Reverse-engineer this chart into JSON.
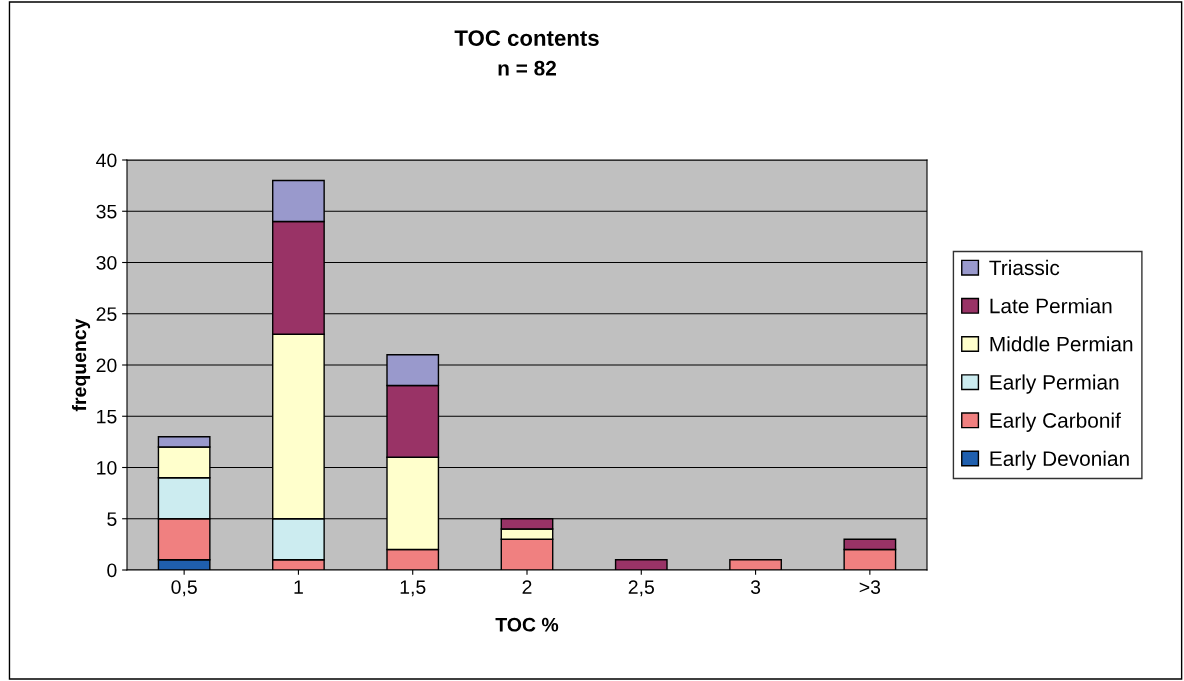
{
  "chart_data": {
    "type": "bar",
    "title": "TOC contents",
    "subtitle": "n = 82",
    "xlabel": "TOC %",
    "ylabel": "frequency",
    "categories": [
      "0,5",
      "1",
      "1,5",
      "2",
      "2,5",
      "3",
      ">3"
    ],
    "stacked": true,
    "ylim": [
      0,
      40
    ],
    "yticks": [
      0,
      5,
      10,
      15,
      20,
      25,
      30,
      35,
      40
    ],
    "grid": "y",
    "legend": "right",
    "series": [
      {
        "name": "Early Devonian",
        "color": "#1f5fae",
        "values": [
          1,
          0,
          0,
          0,
          0,
          0,
          0
        ]
      },
      {
        "name": "Early Carbonif",
        "color": "#f08080",
        "values": [
          4,
          1,
          2,
          3,
          0,
          1,
          2
        ]
      },
      {
        "name": "Early Permian",
        "color": "#ccecf0",
        "values": [
          4,
          4,
          0,
          0,
          0,
          0,
          0
        ]
      },
      {
        "name": "Middle Permian",
        "color": "#ffffcc",
        "values": [
          3,
          18,
          9,
          1,
          0,
          0,
          0
        ]
      },
      {
        "name": "Late Permian",
        "color": "#993366",
        "values": [
          0,
          11,
          7,
          1,
          1,
          0,
          1
        ]
      },
      {
        "name": "Triassic",
        "color": "#9999cc",
        "values": [
          1,
          4,
          3,
          0,
          0,
          0,
          0
        ]
      }
    ]
  }
}
